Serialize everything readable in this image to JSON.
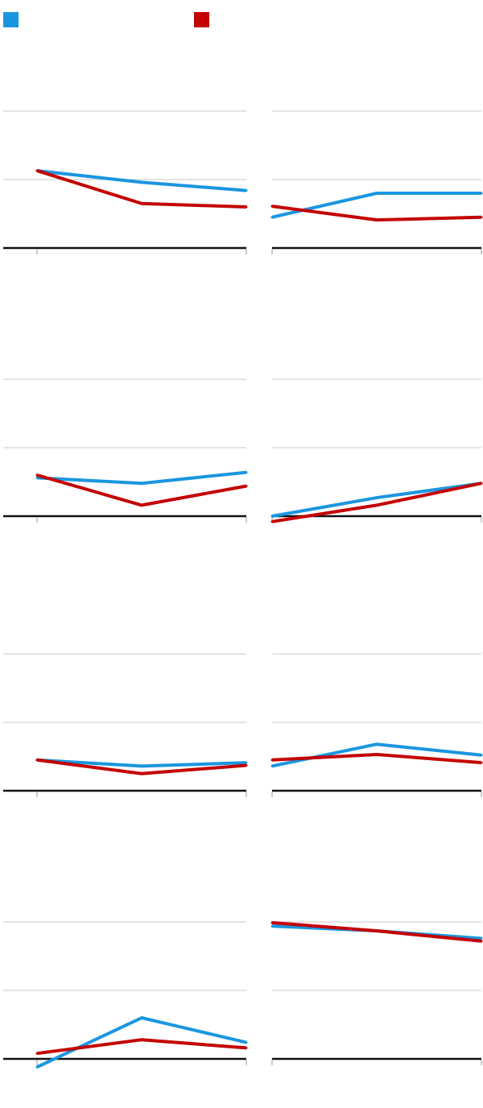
{
  "legend": {
    "series": [
      {
        "name": "",
        "color": "#1a96e0"
      },
      {
        "name": "",
        "color": "#c40000"
      }
    ]
  },
  "chart_data": [
    {
      "type": "line",
      "title": "",
      "categories": [
        "",
        "",
        ""
      ],
      "ylim": [
        0,
        2
      ],
      "grid": true,
      "series": [
        {
          "name": "",
          "values": [
            1.13,
            0.96,
            0.84
          ]
        },
        {
          "name": "",
          "values": [
            1.13,
            0.65,
            0.6
          ]
        }
      ]
    },
    {
      "type": "line",
      "title": "",
      "categories": [
        "",
        "",
        ""
      ],
      "ylim": [
        0,
        2
      ],
      "grid": true,
      "series": [
        {
          "name": "",
          "values": [
            0.45,
            0.8,
            0.8
          ]
        },
        {
          "name": "",
          "values": [
            0.61,
            0.41,
            0.45
          ]
        }
      ]
    },
    {
      "type": "line",
      "title": "",
      "categories": [
        "",
        "",
        ""
      ],
      "ylim": [
        0,
        2
      ],
      "grid": true,
      "series": [
        {
          "name": "",
          "values": [
            0.56,
            0.48,
            0.64
          ]
        },
        {
          "name": "",
          "values": [
            0.6,
            0.16,
            0.44
          ]
        }
      ]
    },
    {
      "type": "line",
      "title": "",
      "categories": [
        "",
        "",
        ""
      ],
      "ylim": [
        0,
        2
      ],
      "grid": true,
      "series": [
        {
          "name": "",
          "values": [
            0.0,
            0.27,
            0.48
          ]
        },
        {
          "name": "",
          "values": [
            -0.08,
            0.16,
            0.48
          ]
        }
      ]
    },
    {
      "type": "line",
      "title": "",
      "categories": [
        "",
        "",
        ""
      ],
      "ylim": [
        0,
        2
      ],
      "grid": true,
      "series": [
        {
          "name": "",
          "values": [
            0.45,
            0.36,
            0.41
          ]
        },
        {
          "name": "",
          "values": [
            0.45,
            0.25,
            0.37
          ]
        }
      ]
    },
    {
      "type": "line",
      "title": "",
      "categories": [
        "",
        "",
        ""
      ],
      "ylim": [
        0,
        2
      ],
      "grid": true,
      "series": [
        {
          "name": "",
          "values": [
            0.36,
            0.68,
            0.52
          ]
        },
        {
          "name": "",
          "values": [
            0.45,
            0.53,
            0.41
          ]
        }
      ]
    },
    {
      "type": "line",
      "title": "",
      "categories": [
        "",
        "",
        ""
      ],
      "ylim": [
        0,
        2
      ],
      "grid": true,
      "series": [
        {
          "name": "",
          "values": [
            -0.12,
            0.6,
            0.24
          ]
        },
        {
          "name": "",
          "values": [
            0.08,
            0.28,
            0.16
          ]
        }
      ]
    },
    {
      "type": "line",
      "title": "",
      "categories": [
        "",
        "",
        ""
      ],
      "ylim": [
        0,
        2
      ],
      "grid": true,
      "series": [
        {
          "name": "",
          "values": [
            1.94,
            1.87,
            1.76
          ]
        },
        {
          "name": "",
          "values": [
            1.99,
            1.87,
            1.72
          ]
        }
      ]
    }
  ]
}
